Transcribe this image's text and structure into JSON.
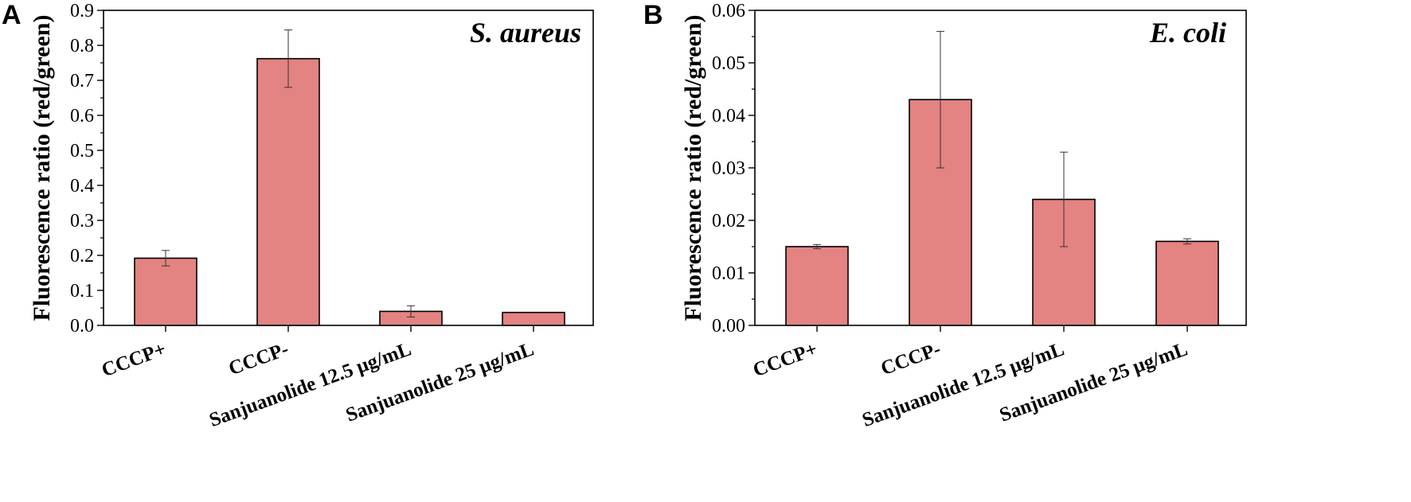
{
  "chart_data": [
    {
      "panel_label": "A",
      "type": "bar",
      "title": "S. aureus",
      "ylabel": "Fluorescence ratio (red/green)",
      "xlabel": "",
      "ylim": [
        0,
        0.9
      ],
      "yticks": [
        "0.0",
        "0.1",
        "0.2",
        "0.3",
        "0.4",
        "0.5",
        "0.6",
        "0.7",
        "0.8",
        "0.9"
      ],
      "categories": [
        "CCCP+",
        "CCCP-",
        "Sanjuanolide 12.5 μg/mL",
        "Sanjuanolide 25 μg/mL"
      ],
      "values": [
        0.192,
        0.762,
        0.04,
        0.037
      ],
      "errors": [
        0.022,
        0.082,
        0.016,
        0.0
      ],
      "bar_color": "#e38382",
      "grid": false
    },
    {
      "panel_label": "B",
      "type": "bar",
      "title": "E. coli",
      "ylabel": "Fluorescence ratio (red/green)",
      "xlabel": "",
      "ylim": [
        0,
        0.06
      ],
      "yticks": [
        "0.00",
        "0.01",
        "0.02",
        "0.03",
        "0.04",
        "0.05",
        "0.06"
      ],
      "categories": [
        "CCCP+",
        "CCCP-",
        "Sanjuanolide 12.5 μg/mL",
        "Sanjuanolide 25 μg/mL"
      ],
      "values": [
        0.015,
        0.043,
        0.024,
        0.016
      ],
      "errors": [
        0.0004,
        0.013,
        0.009,
        0.0005
      ],
      "bar_color": "#e38382",
      "grid": false
    }
  ]
}
